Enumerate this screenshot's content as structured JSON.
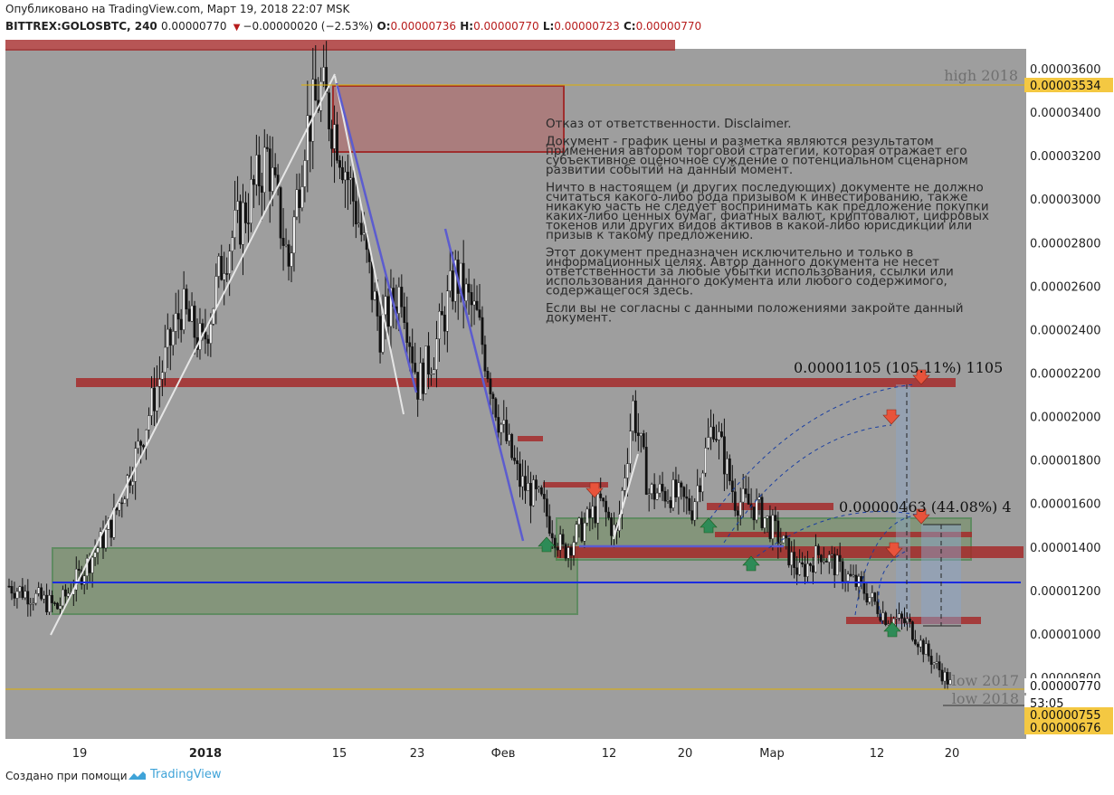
{
  "header": {
    "published": "Опубликовано на TradingView.com, Март 19, 2018 22:07 MSK",
    "symbol": "BITTREX:GOLOSBTC, 240",
    "last": "0.00000770",
    "change": "−0.00000020 (−2.53%)",
    "o_label": "O:",
    "o_value": "0.00000736",
    "h_label": "H:",
    "h_value": "0.00000770",
    "l_label": "L:",
    "l_value": "0.00000723",
    "c_label": "C:",
    "c_value": "0.00000770"
  },
  "footer": {
    "created": "Создано при помощи",
    "brand": "TradingView"
  },
  "colors": {
    "chart_bg": "#9e9e9e",
    "axis_bg": "#ffffff",
    "zone_red": "#a52a2a",
    "zone_green": "#2e7d32",
    "trend_blue": "#5c5ccf",
    "support_blue": "#1a2be0",
    "arrow_red": "#e8533b",
    "arrow_green": "#2e8b57",
    "price_tag": "#f4c842"
  },
  "chart_data": {
    "type": "candlestick",
    "symbol": "BITTREX:GOLOSBTC",
    "timeframe": "240",
    "ylim": [
      6.5e-06,
      3.65e-05
    ],
    "y_ticks": [
      "0.00003600",
      "0.00003400",
      "0.00003200",
      "0.00003000",
      "0.00002800",
      "0.00002600",
      "0.00002400",
      "0.00002200",
      "0.00002000",
      "0.00001800",
      "0.00001600",
      "0.00001400",
      "0.00001200",
      "0.00001000",
      "0.00000800"
    ],
    "x_ticks": [
      "19",
      "2018",
      "15",
      "23",
      "Фев",
      "12",
      "20",
      "Мар",
      "12",
      "20"
    ],
    "price_tags": [
      {
        "value": "0.00003534",
        "color": "yellow"
      },
      {
        "value": "0.00000770",
        "color": "white"
      },
      {
        "value": "53:05",
        "color": "white"
      },
      {
        "value": "0.00000755",
        "color": "yellow"
      },
      {
        "value": "0.00000676",
        "color": "yellow"
      }
    ],
    "levels": [
      {
        "label": "high 2018",
        "price": 3.534e-05
      },
      {
        "label": "low 2017",
        "price": 7.7e-06
      },
      {
        "label": "low 2018",
        "price": 7.55e-06
      }
    ],
    "measurements": [
      {
        "text": "0.00001105 (105.11%) 1105"
      },
      {
        "text": "0.00000463 (44.08%) 4"
      }
    ],
    "disclaimer": [
      "Отказ от ответственности. Disclaimer.",
      "Документ - график цены и разметка являются результатом применения автором торговой стратегии, которая отражает его субъективное оценочное суждение о потенциальном сценарном развитии событий на данный момент.",
      "Ничто в настоящем (и других последующих) документе не должно считаться какого-либо рода призывом к инвестированию, также никакую часть не следует воспринимать как предложение покупки каких-либо ценных бумаг, фиатных валют, криптовалют, цифровых токенов или других видов активов в какой-либо юрисдикции или призыв к такому предложению.",
      "Этот документ предназначен исключительно и только в информационных целях. Автор данного документа не несет ответственности за любые убытки использования, ссылки или использования данного документа или любого содержимого, содержащегося здесь.",
      "Если вы не согласны с данными положениями закройте данный документ."
    ],
    "price_path": [
      [
        0,
        1.22e-05
      ],
      [
        8,
        1.18e-05
      ],
      [
        18,
        1.12e-05
      ],
      [
        28,
        1.3e-05
      ],
      [
        38,
        1.5e-05
      ],
      [
        48,
        1.85e-05
      ],
      [
        56,
        2.18e-05
      ],
      [
        64,
        2.5e-05
      ],
      [
        72,
        2.32e-05
      ],
      [
        80,
        2.75e-05
      ],
      [
        88,
        2.95e-05
      ],
      [
        96,
        3.2e-05
      ],
      [
        104,
        2.7e-05
      ],
      [
        110,
        3.3e-05
      ],
      [
        116,
        3.5e-05
      ],
      [
        122,
        3.3e-05
      ],
      [
        130,
        2.9e-05
      ],
      [
        138,
        2.4e-05
      ],
      [
        146,
        2.6e-05
      ],
      [
        152,
        2.15e-05
      ],
      [
        158,
        2.3e-05
      ],
      [
        166,
        2.65e-05
      ],
      [
        174,
        2.45e-05
      ],
      [
        182,
        2e-05
      ],
      [
        190,
        1.7e-05
      ],
      [
        198,
        1.6e-05
      ],
      [
        206,
        1.38e-05
      ],
      [
        214,
        1.5e-05
      ],
      [
        220,
        1.6e-05
      ],
      [
        226,
        1.45e-05
      ],
      [
        232,
        2.05e-05
      ],
      [
        238,
        1.65e-05
      ],
      [
        246,
        1.65e-05
      ],
      [
        254,
        1.58e-05
      ],
      [
        262,
        1.98e-05
      ],
      [
        270,
        1.62e-05
      ],
      [
        278,
        1.58e-05
      ],
      [
        286,
        1.45e-05
      ],
      [
        294,
        1.28e-05
      ],
      [
        302,
        1.38e-05
      ],
      [
        310,
        1.28e-05
      ],
      [
        318,
        1.2e-05
      ],
      [
        326,
        1.08e-05
      ],
      [
        334,
        1.05e-05
      ],
      [
        342,
        9e-06
      ],
      [
        350,
        7.7e-06
      ]
    ]
  }
}
